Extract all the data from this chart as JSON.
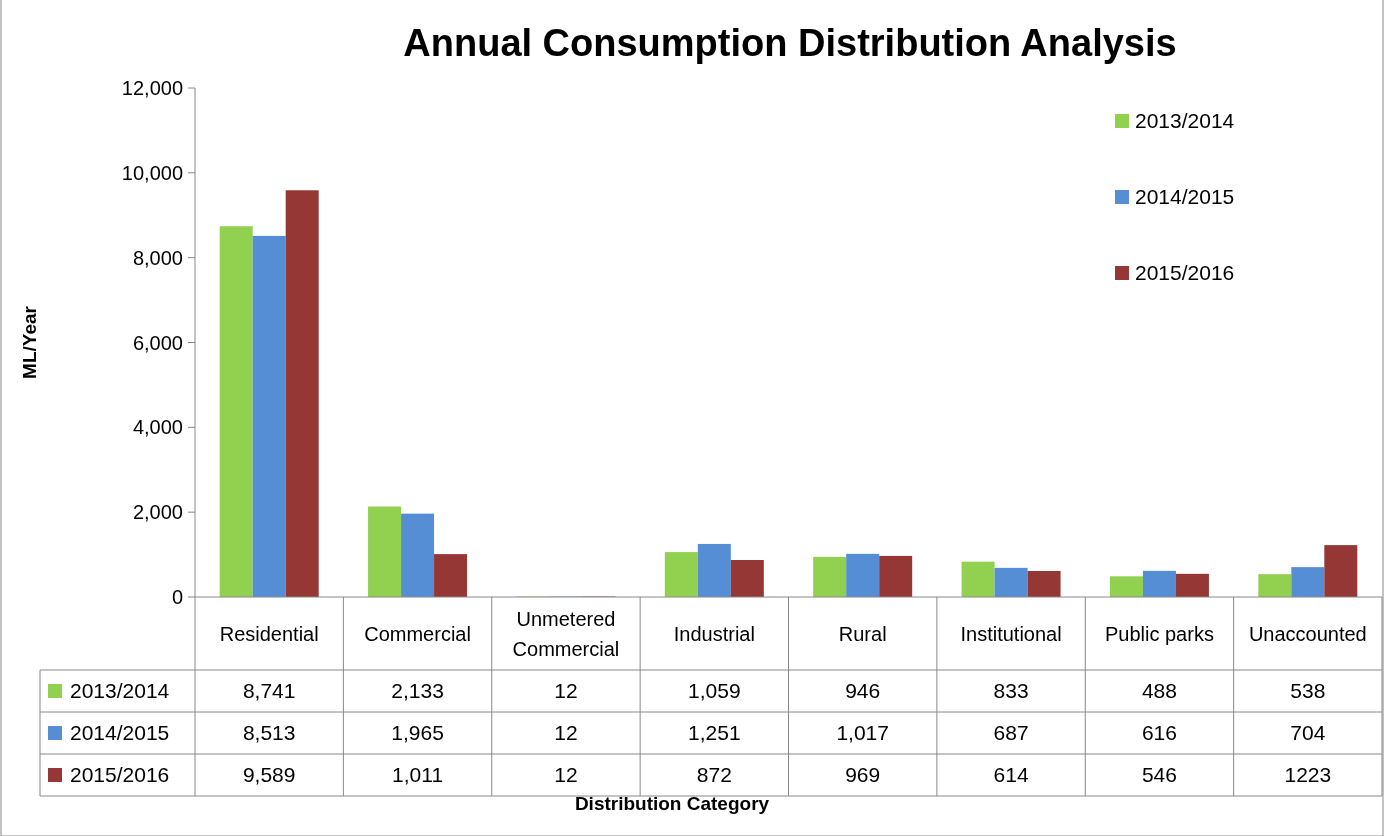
{
  "chart_data": {
    "type": "bar",
    "title": "Annual Consumption Distribution Analysis",
    "annotations": [
      "Distribution Category"
    ],
    "ylabel": "ML/Year",
    "categories": [
      "Residential",
      "Commercial",
      "Unmetered Commercial",
      "Industrial",
      "Rural",
      "Institutional",
      "Public parks",
      "Unaccounted"
    ],
    "series": [
      {
        "name": "2013/2014",
        "color": "#92d050",
        "values": [
          8741,
          2133,
          12,
          1059,
          946,
          833,
          488,
          538
        ],
        "value_labels": [
          "8,741",
          "2,133",
          "12",
          "1,059",
          "946",
          "833",
          "488",
          "538"
        ]
      },
      {
        "name": "2014/2015",
        "color": "#558ed5",
        "values": [
          8513,
          1965,
          12,
          1251,
          1017,
          687,
          616,
          704
        ],
        "value_labels": [
          "8,513",
          "1,965",
          "12",
          "1,251",
          "1,017",
          "687",
          "616",
          "704"
        ]
      },
      {
        "name": "2015/2016",
        "color": "#953735",
        "values": [
          9589,
          1011,
          12,
          872,
          969,
          614,
          546,
          1223
        ],
        "value_labels": [
          "9,589",
          "1,011",
          "12",
          "872",
          "969",
          "614",
          "546",
          "1223"
        ]
      }
    ],
    "ylim": [
      0,
      12000
    ],
    "yticks": [
      0,
      {
        "value": 2000,
        "label": "2,000"
      },
      {
        "value": 4000,
        "label": "4,000"
      },
      {
        "value": 6000,
        "label": "6,000"
      },
      {
        "value": 8000,
        "label": "8,000"
      },
      {
        "value": 10000,
        "label": "10,000"
      },
      {
        "value": 12000,
        "label": "12,000"
      }
    ],
    "grid": false,
    "legend": "top right"
  }
}
